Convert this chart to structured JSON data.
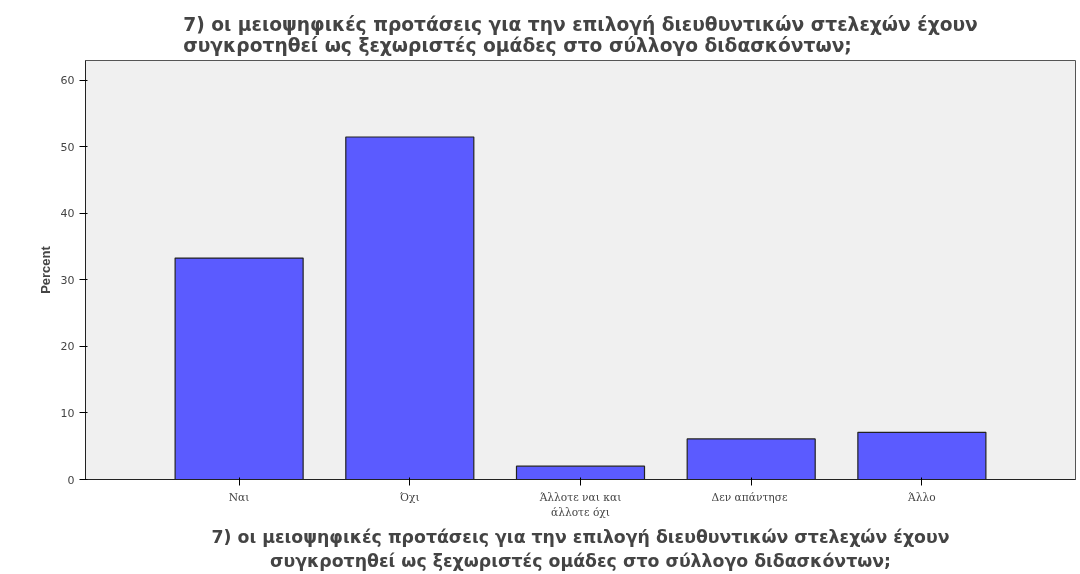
{
  "chart_data": {
    "type": "bar",
    "title": "7) οι μειοψηφικές προτάσεις για την επιλογή διευθυντικών στελεχών έχουν\nσυγκροτηθεί ως ξεχωριστές ομάδες στο σύλλογο διδασκόντων;",
    "xlabel": "7) οι μειοψηφικές προτάσεις για την επιλογή διευθυντικών στελεχών έχουν\nσυγκροτηθεί ως ξεχωριστές ομάδες στο σύλλογο διδασκόντων;",
    "ylabel": "Percent",
    "categories": [
      "Ναι",
      "Όχι",
      "Άλλοτε ναι και\nάλλοτε όχι",
      "Δεν  απάντησε",
      "Άλλο"
    ],
    "values": [
      33.3,
      51.5,
      2.0,
      6.1,
      7.1
    ],
    "color": "#5b5bff",
    "ylim": [
      0,
      63
    ],
    "yticks": [
      0,
      10,
      20,
      30,
      40,
      50,
      60
    ],
    "grid": false
  }
}
